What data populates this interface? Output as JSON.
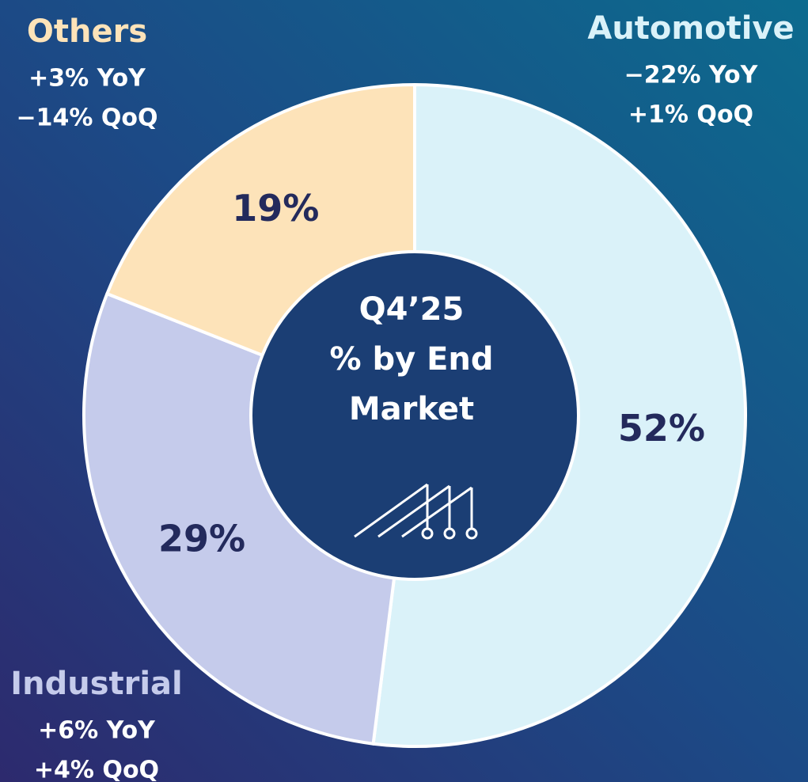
{
  "chart_data": {
    "type": "donut",
    "center_label": [
      "Q4’25",
      "% by End",
      "Market"
    ],
    "categories": [
      "Automotive",
      "Industrial",
      "Others"
    ],
    "values": [
      52,
      29,
      19
    ],
    "value_labels": [
      "52%",
      "29%",
      "19%"
    ],
    "colors": [
      "#daf2f9",
      "#c5cbeb",
      "#fde3b9"
    ],
    "yoy": [
      "−22% YoY",
      "+6% YoY",
      "+3% YoY"
    ],
    "qoq": [
      "+1% QoQ",
      "+4% QoQ",
      "−14% QoQ"
    ]
  }
}
